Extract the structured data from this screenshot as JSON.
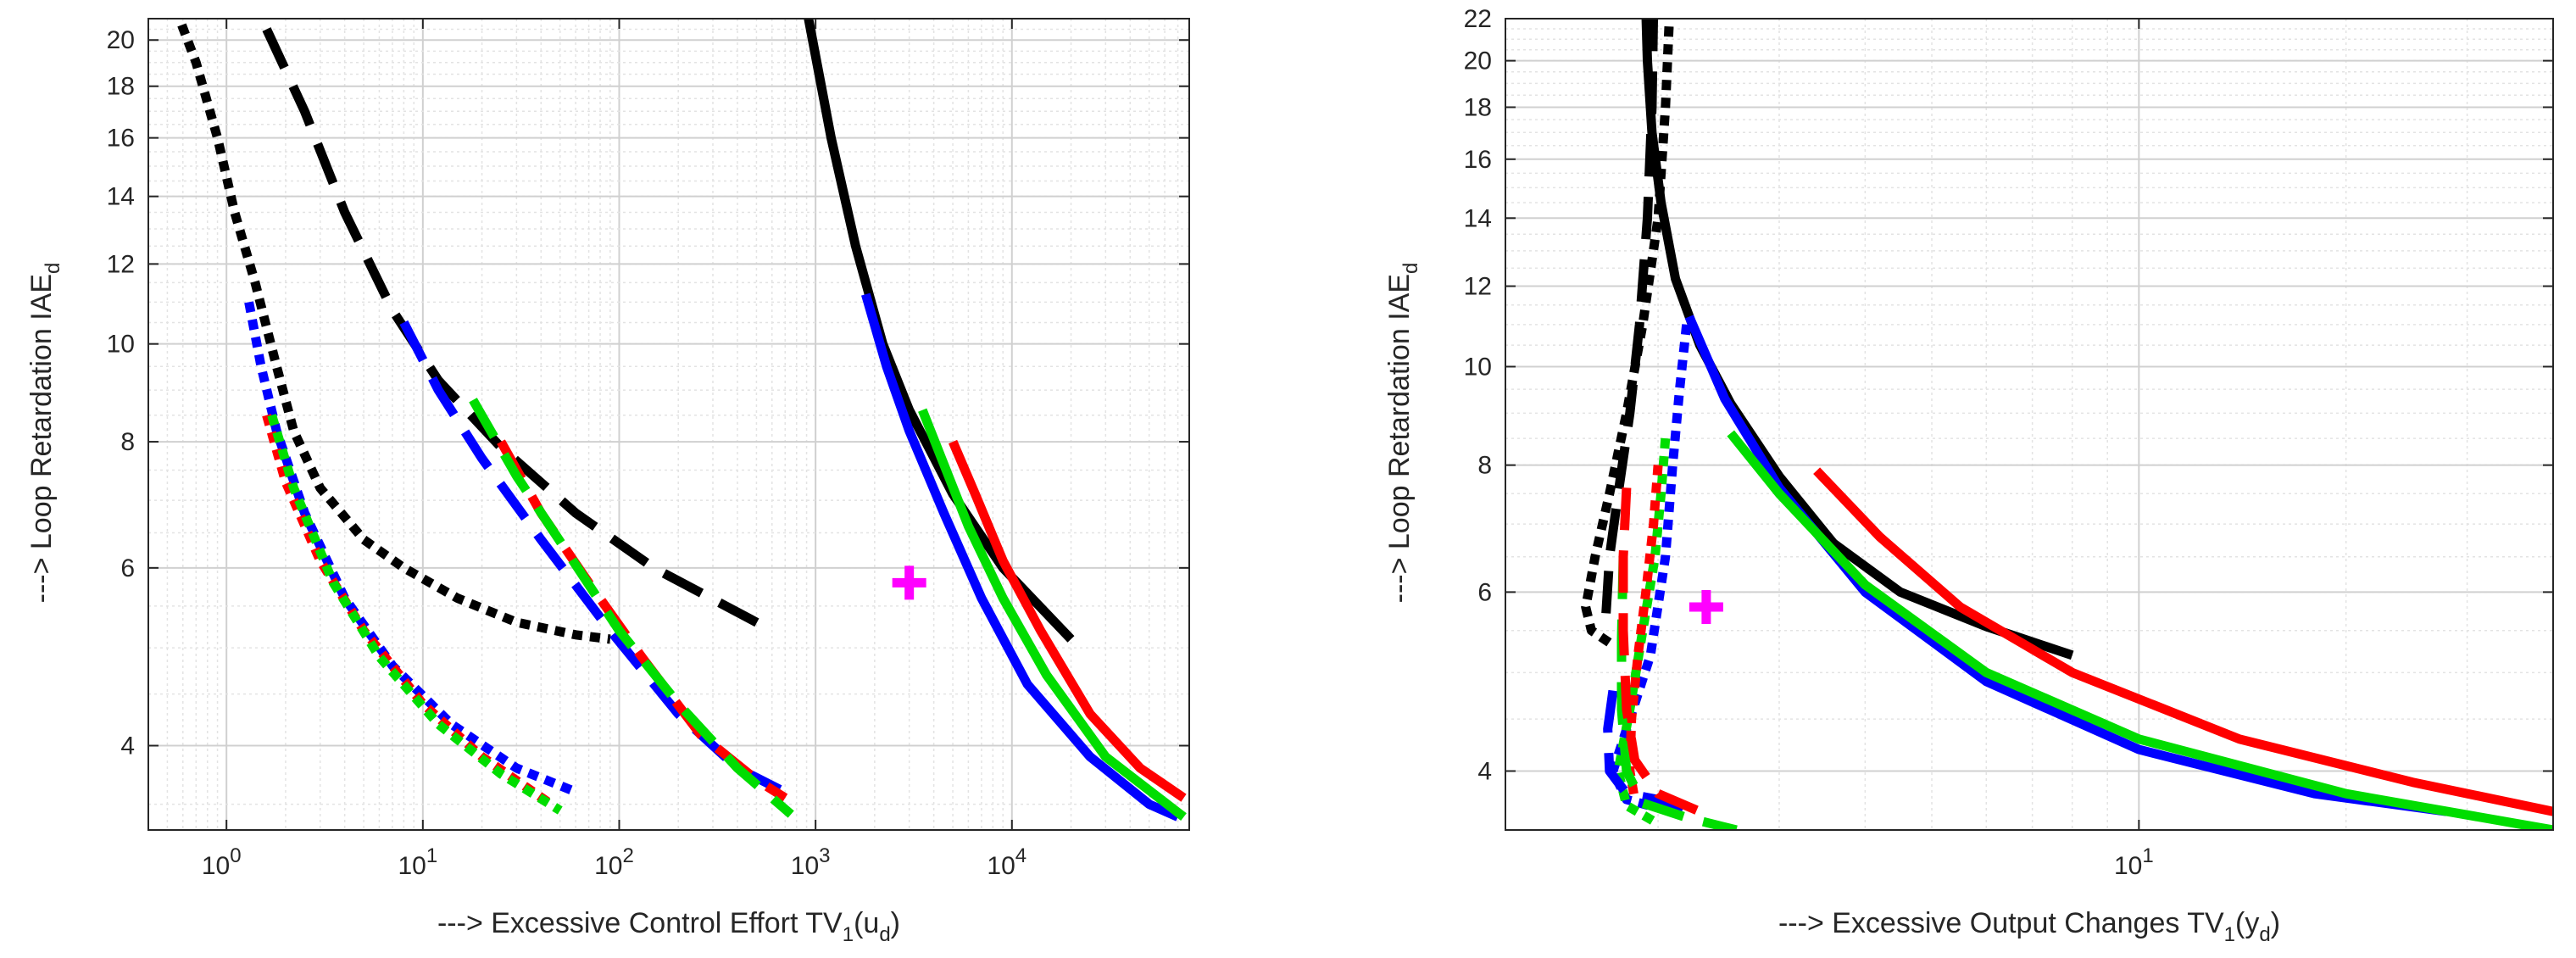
{
  "chart_data": [
    {
      "type": "line",
      "xscale": "log",
      "yscale": "log",
      "xlim": [
        0.4,
        80000
      ],
      "ylim": [
        3.3,
        21
      ],
      "xticks": [
        1,
        10,
        100,
        1000,
        10000
      ],
      "xtick_labels": [
        {
          "base": "10",
          "exp": "0"
        },
        {
          "base": "10",
          "exp": "1"
        },
        {
          "base": "10",
          "exp": "2"
        },
        {
          "base": "10",
          "exp": "3"
        },
        {
          "base": "10",
          "exp": "4"
        }
      ],
      "yticks": [
        4,
        6,
        8,
        10,
        12,
        14,
        16,
        18,
        20
      ],
      "ytick_labels": [
        "4",
        "6",
        "8",
        "10",
        "12",
        "14",
        "16",
        "18",
        "20"
      ],
      "xlabel": {
        "main": "---> Excessive Control Effort TV",
        "sub1": "1",
        "mid": "(u",
        "sub2": "d",
        "end": ")"
      },
      "ylabel": {
        "main": "---> Loop Retardation  IAE",
        "sub": "d"
      },
      "grid": true,
      "marker": {
        "shape": "plus",
        "color": "#ff00ff",
        "x": 3000,
        "y": 5.8
      },
      "series": [
        {
          "color": "#000000",
          "style": "dotted",
          "points": [
            [
              0.55,
              21.5
            ],
            [
              0.7,
              19
            ],
            [
              0.9,
              16
            ],
            [
              1.1,
              13.5
            ],
            [
              1.4,
              11.5
            ],
            [
              1.8,
              9.5
            ],
            [
              2.2,
              8.2
            ],
            [
              3,
              7.2
            ],
            [
              5,
              6.4
            ],
            [
              8,
              6.0
            ],
            [
              15,
              5.6
            ],
            [
              30,
              5.3
            ],
            [
              60,
              5.15
            ],
            [
              90,
              5.1
            ]
          ]
        },
        {
          "color": "#000000",
          "style": "dashed",
          "points": [
            [
              1.6,
              20.5
            ],
            [
              2.5,
              17
            ],
            [
              4,
              13.5
            ],
            [
              7,
              10.8
            ],
            [
              12,
              9.2
            ],
            [
              25,
              7.9
            ],
            [
              60,
              6.8
            ],
            [
              150,
              6.0
            ],
            [
              600,
              5.2
            ]
          ]
        },
        {
          "color": "#000000",
          "style": "solid",
          "points": [
            [
              900,
              21.5
            ],
            [
              1200,
              16
            ],
            [
              1600,
              12.5
            ],
            [
              2200,
              10
            ],
            [
              3000,
              8.6
            ],
            [
              5000,
              7.1
            ],
            [
              9000,
              6.0
            ],
            [
              20000,
              5.1
            ]
          ]
        },
        {
          "color": "#0000ff",
          "style": "dotted",
          "points": [
            [
              1.3,
              11
            ],
            [
              1.5,
              9.5
            ],
            [
              1.8,
              8.2
            ],
            [
              2.5,
              6.8
            ],
            [
              4,
              5.6
            ],
            [
              7,
              4.8
            ],
            [
              14,
              4.2
            ],
            [
              30,
              3.8
            ],
            [
              60,
              3.6
            ]
          ]
        },
        {
          "color": "#ff0000",
          "style": "dotted",
          "points": [
            [
              1.6,
              8.5
            ],
            [
              2,
              7.3
            ],
            [
              3,
              6.1
            ],
            [
              5,
              5.2
            ],
            [
              10,
              4.4
            ],
            [
              20,
              3.9
            ],
            [
              45,
              3.5
            ]
          ]
        },
        {
          "color": "#00dd00",
          "style": "dotted",
          "points": [
            [
              1.7,
              8.5
            ],
            [
              2.2,
              7.2
            ],
            [
              3.5,
              5.8
            ],
            [
              6,
              4.9
            ],
            [
              12,
              4.2
            ],
            [
              25,
              3.75
            ],
            [
              50,
              3.45
            ]
          ]
        },
        {
          "color": "#0000ff",
          "style": "dashed",
          "points": [
            [
              8,
              10.5
            ],
            [
              12,
              9.0
            ],
            [
              20,
              7.7
            ],
            [
              40,
              6.4
            ],
            [
              90,
              5.2
            ],
            [
              200,
              4.3
            ],
            [
              400,
              3.8
            ],
            [
              800,
              3.55
            ]
          ]
        },
        {
          "color": "#ff0000",
          "style": "dashed",
          "points": [
            [
              25,
              8.0
            ],
            [
              40,
              6.8
            ],
            [
              70,
              5.8
            ],
            [
              130,
              4.9
            ],
            [
              260,
              4.1
            ],
            [
              500,
              3.7
            ],
            [
              700,
              3.55
            ]
          ]
        },
        {
          "color": "#00dd00",
          "style": "dashed",
          "points": [
            [
              18,
              8.8
            ],
            [
              30,
              7.4
            ],
            [
              55,
              6.2
            ],
            [
              100,
              5.2
            ],
            [
              200,
              4.4
            ],
            [
              400,
              3.8
            ],
            [
              750,
              3.42
            ]
          ]
        },
        {
          "color": "#0000ff",
          "style": "solid",
          "points": [
            [
              1800,
              11.2
            ],
            [
              2300,
              9.5
            ],
            [
              3000,
              8.2
            ],
            [
              4500,
              6.8
            ],
            [
              7000,
              5.6
            ],
            [
              12000,
              4.6
            ],
            [
              25000,
              3.9
            ],
            [
              50000,
              3.5
            ],
            [
              70000,
              3.4
            ]
          ]
        },
        {
          "color": "#00dd00",
          "style": "solid",
          "points": [
            [
              3500,
              8.6
            ],
            [
              4500,
              7.6
            ],
            [
              6000,
              6.6
            ],
            [
              9000,
              5.6
            ],
            [
              15000,
              4.7
            ],
            [
              30000,
              3.9
            ],
            [
              75000,
              3.4
            ]
          ]
        },
        {
          "color": "#ff0000",
          "style": "solid",
          "points": [
            [
              5000,
              8.0
            ],
            [
              6500,
              7.1
            ],
            [
              9000,
              6.1
            ],
            [
              14000,
              5.2
            ],
            [
              25000,
              4.3
            ],
            [
              45000,
              3.8
            ],
            [
              75000,
              3.55
            ]
          ]
        }
      ]
    },
    {
      "type": "line",
      "xscale": "log",
      "yscale": "log",
      "xlim": [
        1.2,
        40
      ],
      "ylim": [
        3.5,
        22
      ],
      "xticks": [
        10
      ],
      "xtick_labels": [
        {
          "base": "10",
          "exp": "1"
        }
      ],
      "yticks": [
        4,
        6,
        8,
        10,
        12,
        14,
        16,
        18,
        20,
        22
      ],
      "ytick_labels": [
        "4",
        "6",
        "8",
        "10",
        "12",
        "14",
        "16",
        "18",
        "20",
        "22"
      ],
      "xlabel": {
        "main": "---> Excessive Output Changes TV",
        "sub1": "1",
        "mid": "(y",
        "sub2": "d",
        "end": ")"
      },
      "ylabel": {
        "main": "---> Loop Retardation  IAE",
        "sub": "d"
      },
      "grid": true,
      "marker": {
        "shape": "plus",
        "color": "#ff00ff",
        "x": 2.35,
        "y": 5.8
      },
      "series": [
        {
          "color": "#000000",
          "style": "solid",
          "points": [
            [
              1.92,
              22.5
            ],
            [
              1.93,
              20
            ],
            [
              1.96,
              17
            ],
            [
              2.02,
              14.5
            ],
            [
              2.12,
              12.2
            ],
            [
              2.3,
              10.5
            ],
            [
              2.55,
              9.2
            ],
            [
              3.0,
              7.8
            ],
            [
              3.6,
              6.7
            ],
            [
              4.5,
              6.0
            ],
            [
              6.0,
              5.55
            ],
            [
              8.0,
              5.2
            ]
          ]
        },
        {
          "color": "#000000",
          "style": "dashed",
          "points": [
            [
              1.97,
              22.5
            ],
            [
              1.96,
              18
            ],
            [
              1.93,
              14
            ],
            [
              1.88,
              11
            ],
            [
              1.82,
              9
            ],
            [
              1.75,
              7.5
            ],
            [
              1.7,
              6.5
            ],
            [
              1.68,
              5.7
            ]
          ]
        },
        {
          "color": "#000000",
          "style": "dotted",
          "points": [
            [
              2.08,
              22.5
            ],
            [
              2.05,
              18
            ],
            [
              2.0,
              14
            ],
            [
              1.9,
              11
            ],
            [
              1.8,
              9
            ],
            [
              1.7,
              7.5
            ],
            [
              1.62,
              6.5
            ],
            [
              1.57,
              5.8
            ],
            [
              1.6,
              5.5
            ],
            [
              1.7,
              5.35
            ]
          ]
        },
        {
          "color": "#0000ff",
          "style": "solid",
          "points": [
            [
              2.22,
              11.2
            ],
            [
              2.5,
              9.3
            ],
            [
              3.0,
              7.6
            ],
            [
              4.0,
              6.0
            ],
            [
              6.0,
              4.9
            ],
            [
              10,
              4.2
            ],
            [
              18,
              3.8
            ],
            [
              28,
              3.65
            ]
          ]
        },
        {
          "color": "#00dd00",
          "style": "solid",
          "points": [
            [
              2.55,
              8.6
            ],
            [
              3.0,
              7.5
            ],
            [
              4.0,
              6.1
            ],
            [
              6.0,
              5.0
            ],
            [
              10,
              4.3
            ],
            [
              20,
              3.8
            ],
            [
              40,
              3.5
            ]
          ]
        },
        {
          "color": "#ff0000",
          "style": "solid",
          "points": [
            [
              3.4,
              7.9
            ],
            [
              4.2,
              6.8
            ],
            [
              5.5,
              5.8
            ],
            [
              8.0,
              5.0
            ],
            [
              14,
              4.3
            ],
            [
              25,
              3.9
            ],
            [
              40,
              3.65
            ]
          ]
        },
        {
          "color": "#0000ff",
          "style": "dotted",
          "points": [
            [
              2.2,
              11
            ],
            [
              2.15,
              9.5
            ],
            [
              2.1,
              8
            ],
            [
              2.05,
              6.5
            ],
            [
              1.95,
              5.2
            ],
            [
              1.82,
              4.5
            ],
            [
              1.72,
              4.0
            ],
            [
              1.8,
              3.75
            ],
            [
              2.0,
              3.68
            ]
          ]
        },
        {
          "color": "#00dd00",
          "style": "dotted",
          "points": [
            [
              2.05,
              8.5
            ],
            [
              2.02,
              7.5
            ],
            [
              1.98,
              6.5
            ],
            [
              1.9,
              5.5
            ],
            [
              1.82,
              4.6
            ],
            [
              1.75,
              4.0
            ],
            [
              1.8,
              3.7
            ],
            [
              2.0,
              3.55
            ]
          ]
        },
        {
          "color": "#ff0000",
          "style": "dotted",
          "points": [
            [
              2.0,
              8.0
            ],
            [
              1.97,
              7.0
            ],
            [
              1.92,
              6.0
            ],
            [
              1.87,
              5.2
            ],
            [
              1.83,
              4.5
            ],
            [
              1.82,
              4.0
            ],
            [
              1.85,
              3.75
            ]
          ]
        },
        {
          "color": "#0000ff",
          "style": "dashed",
          "points": [
            [
              1.72,
              4.8
            ],
            [
              1.69,
              4.4
            ],
            [
              1.7,
              4.0
            ],
            [
              1.8,
              3.8
            ],
            [
              2.0,
              3.75
            ],
            [
              2.2,
              3.65
            ]
          ]
        },
        {
          "color": "#00dd00",
          "style": "dashed",
          "points": [
            [
              1.78,
              6.5
            ],
            [
              1.77,
              5.4
            ],
            [
              1.77,
              4.6
            ],
            [
              1.8,
              4.0
            ],
            [
              1.9,
              3.72
            ],
            [
              2.2,
              3.6
            ],
            [
              2.6,
              3.5
            ]
          ]
        },
        {
          "color": "#ff0000",
          "style": "dashed",
          "points": [
            [
              1.8,
              7.6
            ],
            [
              1.78,
              6.5
            ],
            [
              1.78,
              5.5
            ],
            [
              1.8,
              4.6
            ],
            [
              1.85,
              4.1
            ],
            [
              2.0,
              3.8
            ],
            [
              2.3,
              3.65
            ]
          ]
        }
      ]
    }
  ]
}
